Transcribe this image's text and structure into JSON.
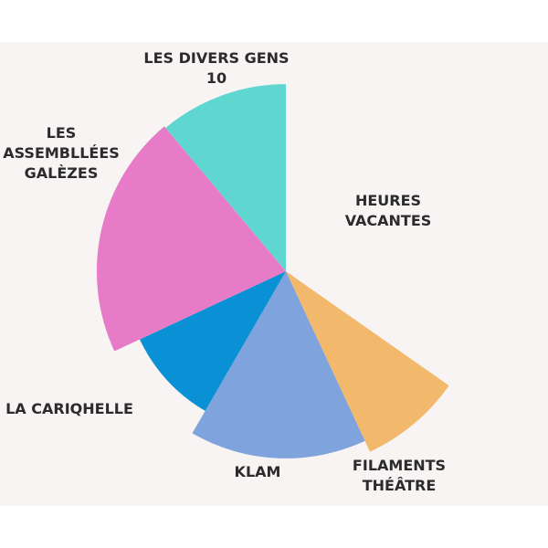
{
  "chart_data": {
    "type": "pie",
    "title": "",
    "start_angle_deg": 0,
    "direction": "clockwise",
    "slices": [
      {
        "label": "HEURES\nVACANTES",
        "value": 0.3472,
        "color": "#f7f4f3",
        "radius": 0.0
      },
      {
        "label": "FILAMENTS\nTHÉÂTRE",
        "value": 0.0833,
        "color": "#f2b96c",
        "radius": 1.0
      },
      {
        "label": "KLAM",
        "value": 0.1528,
        "color": "#7fa3dc",
        "radius": 0.94
      },
      {
        "label": "LA CARIQHELLE",
        "value": 0.0972,
        "color": "#0a90d4",
        "radius": 0.81
      },
      {
        "label": "LES\nASSEMBLLÉES\nGALÈZES",
        "value": 0.2083,
        "color": "#e77bc7",
        "radius": 0.95
      },
      {
        "label": "LES DIVERS GENS\n10",
        "value": 0.1111,
        "color": "#5fd7d0",
        "radius": 0.94
      }
    ]
  }
}
